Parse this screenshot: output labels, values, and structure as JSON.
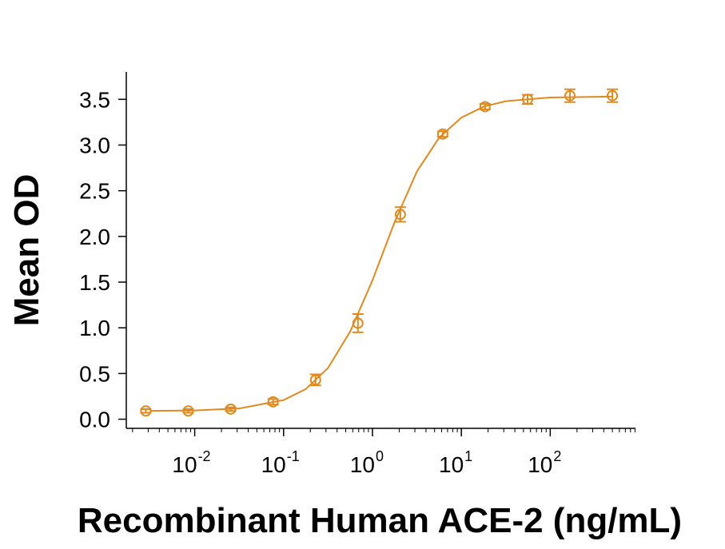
{
  "chart_data": {
    "type": "scatter",
    "x_label": "Recombinant Human ACE-2 (ng/mL)",
    "y_label": "Mean OD",
    "x_scale": "log",
    "xlim": [
      0.0017,
      910
    ],
    "ylim": [
      -0.1,
      3.8
    ],
    "xticks": [
      {
        "value": 0.01,
        "label": "10",
        "sup": "-2"
      },
      {
        "value": 0.1,
        "label": "10",
        "sup": "-1"
      },
      {
        "value": 1,
        "label": "10",
        "sup": "0"
      },
      {
        "value": 10,
        "label": "10",
        "sup": "1"
      },
      {
        "value": 100,
        "label": "10",
        "sup": "2"
      }
    ],
    "yticks": [
      {
        "value": 0,
        "label": "0.0"
      },
      0.5,
      {
        "value": 1,
        "label": "1.0"
      },
      1.5,
      {
        "value": 2,
        "label": "2.0"
      },
      2.5,
      {
        "value": 3,
        "label": "3.0"
      },
      3.5
    ],
    "series": [
      {
        "mode": "markers",
        "color": "#df8a1f",
        "x": [
          0.00282,
          0.00847,
          0.0254,
          0.0762,
          0.229,
          0.686,
          2.06,
          6.17,
          18.5,
          55.6,
          166.7,
          500
        ],
        "values": [
          0.09,
          0.09,
          0.11,
          0.19,
          0.43,
          1.05,
          2.24,
          3.12,
          3.42,
          3.5,
          3.54,
          3.54
        ],
        "errors": [
          0.02,
          0.02,
          0.02,
          0.03,
          0.06,
          0.1,
          0.08,
          0.03,
          0.03,
          0.05,
          0.07,
          0.07
        ]
      },
      {
        "mode": "line",
        "color": "#df8a1f",
        "x": [
          0.00316,
          0.01,
          0.0316,
          0.1,
          0.178,
          0.316,
          0.562,
          1,
          1.78,
          3.16,
          5.62,
          10,
          17.8,
          31.6,
          100,
          500
        ],
        "values": [
          0.091,
          0.096,
          0.117,
          0.209,
          0.33,
          0.56,
          0.96,
          1.52,
          2.16,
          2.71,
          3.08,
          3.3,
          3.42,
          3.48,
          3.52,
          3.53
        ]
      }
    ]
  }
}
